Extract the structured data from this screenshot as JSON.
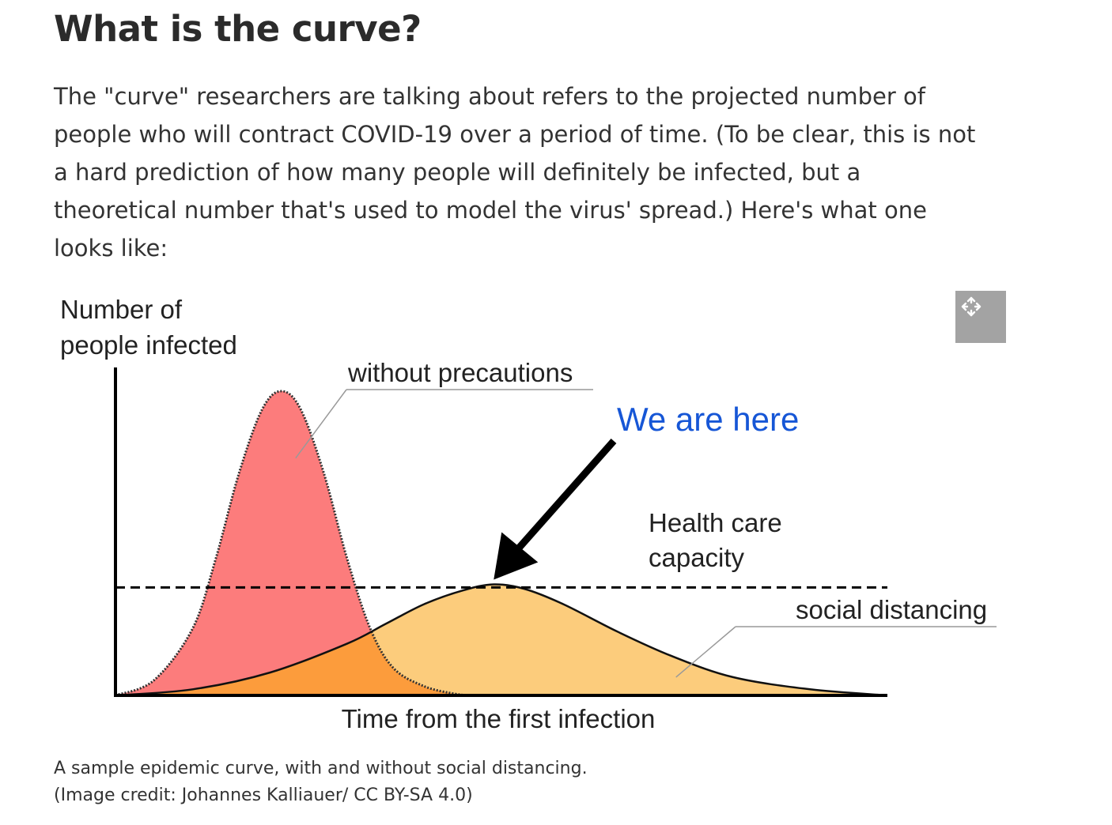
{
  "article": {
    "heading": "What is the curve?",
    "intro_lines": [
      "The \"curve\" researchers are talking about refers to the projected number of",
      "people who will contract COVID-19 over a period of time. (To be clear, this is not",
      "a hard prediction of how many people will definitely be infected, but a",
      "theoretical number that's used to model the virus' spread.) Here's what one",
      "looks like:"
    ]
  },
  "figure": {
    "expand_icon": "move-arrows-icon",
    "caption_lines": [
      "A sample epidemic curve, with and without social distancing.",
      "(Image credit: Johannes Kalliauer/ CC BY-SA 4.0)"
    ]
  },
  "chart_data": {
    "type": "area",
    "title": "",
    "ylabel_lines": [
      "Number of",
      "people infected"
    ],
    "xlabel": "Time from the first infection",
    "x_range": [
      0,
      100
    ],
    "y_range": [
      0,
      100
    ],
    "grid": false,
    "series": [
      {
        "name": "without precautions",
        "color": "#fc7c7c",
        "peak_x": 21.5,
        "peak_y": 100,
        "x": [
          0,
          5,
          10,
          13,
          16,
          19,
          21.5,
          24,
          27,
          30,
          33,
          36,
          40,
          44,
          46
        ],
        "values": [
          0,
          5,
          22,
          45,
          73,
          94,
          100,
          94,
          73,
          45,
          22,
          9,
          3,
          0.5,
          0
        ]
      },
      {
        "name": "social distancing",
        "color": "#fccc7c",
        "peak_x": 49,
        "peak_y": 36.5,
        "x": [
          0,
          10,
          20,
          30,
          35,
          40,
          45,
          49,
          53,
          58,
          65,
          72,
          80,
          90,
          100
        ],
        "values": [
          0,
          2,
          7.5,
          17,
          23.5,
          30,
          34.5,
          36.5,
          35,
          30,
          21,
          13,
          6,
          2,
          0
        ]
      }
    ],
    "overlap_color": "#fc9c3c",
    "health_care_capacity": {
      "label_lines": [
        "Health care",
        "capacity"
      ],
      "y": 35.5
    },
    "annotation": {
      "text": "We are here",
      "color": "#1656d6",
      "points_to_x": 49,
      "points_to_y": 36.5
    }
  }
}
